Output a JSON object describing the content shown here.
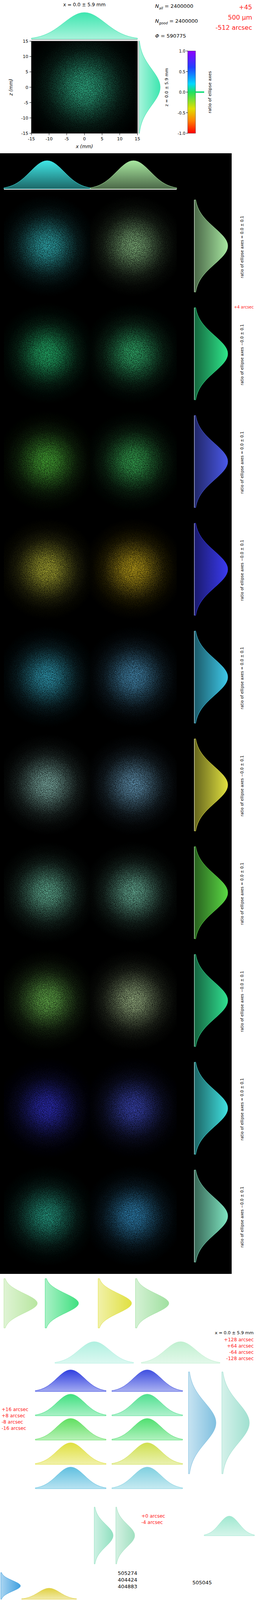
{
  "chart_data": {
    "type": "beam_image",
    "title": "x = 0.0 ± 5.9 mm",
    "side_title": "z = 0.0 ± 5.9 mm",
    "x_label": "x (mm)",
    "y_label": "z (mm)",
    "mean": 0.0,
    "sigma": 5.9,
    "xlim": [
      -15,
      15
    ],
    "ylim": [
      -15,
      15
    ],
    "xticks": [
      -15,
      -10,
      -5,
      0,
      5,
      10,
      15
    ],
    "yticks": [
      -15,
      -10,
      -5,
      0,
      5,
      10,
      15
    ],
    "color": "#3ee6b0",
    "stats": [
      {
        "label": "N",
        "sub": "all",
        "text": "= 2400000"
      },
      {
        "label": "N",
        "sub": "good",
        "text": "= 2400000"
      },
      {
        "label": "Φ",
        "text": "= 590775"
      }
    ],
    "colorbar": {
      "label": "ratio of ellipse axes",
      "range": [
        -1,
        1
      ],
      "ticks": [
        {
          "value": 1,
          "label": "1.0"
        },
        {
          "value": 0.5,
          "label": "0.5"
        },
        {
          "value": 0,
          "label": "0.0"
        },
        {
          "value": -0.5,
          "label": "-0.5"
        },
        {
          "value": -1,
          "label": "-1.0"
        }
      ]
    },
    "annotation": [
      "+45",
      "500 µm",
      "-512 arcsec"
    ]
  },
  "grid_panels": {
    "top_profile_colors": [
      "#3fe6e6",
      "#a8e8a0"
    ],
    "offset_label": "+4 arcsec",
    "rows": [
      {
        "colors": [
          "#3fe0e6",
          "#a6e6a0"
        ],
        "profile_color": "#a6e6a0",
        "side_label": "ratio of ellipse axes = 0.0 ± 0.1"
      },
      {
        "colors": [
          "#2ee68a",
          "#3fe08a"
        ],
        "profile_color": "#2ee68a",
        "side_label": "ratio of ellipse axes −0.0 ± 0.1"
      },
      {
        "colors": [
          "#5ad844",
          "#46d86a"
        ],
        "profile_color": "#4a58e8",
        "side_label": "ratio of ellipse axes = 0.0 ± 0.1"
      },
      {
        "colors": [
          "#d8d840",
          "#f0cc20"
        ],
        "profile_color": "#3a3af0",
        "side_label": "ratio of ellipse axes −0.0 ± 0.1"
      },
      {
        "colors": [
          "#3ec8e8",
          "#5ab4e8"
        ],
        "profile_color": "#3ec8e8",
        "side_label": "ratio of ellipse axes = 0.0 ± 0.1"
      },
      {
        "colors": [
          "#a4e4d8",
          "#7ec0e8"
        ],
        "profile_color": "#e0e040",
        "side_label": "ratio of ellipse axes −0.0 ± 0.1"
      },
      {
        "colors": [
          "#7ee4c0",
          "#86e4c4"
        ],
        "profile_color": "#5ad844",
        "side_label": "ratio of ellipse axes = 0.0 ± 0.1"
      },
      {
        "colors": [
          "#80e060",
          "#c4e4a8"
        ],
        "profile_color": "#30e090",
        "side_label": "ratio of ellipse axes −0.0 ± 0.1"
      },
      {
        "colors": [
          "#3a3af0",
          "#4a58e8"
        ],
        "profile_color": "#40e0e0",
        "side_label": "ratio of ellipse axes = 0.0 ± 0.1"
      },
      {
        "colors": [
          "#30c8a8",
          "#3ca8e8"
        ],
        "profile_color": "#7ee4c0",
        "side_label": "ratio of ellipse axes −0.0 ± 0.1"
      }
    ]
  },
  "bottom": {
    "vertical_profiles": [
      "#b8e6a0",
      "#40e080",
      "#e0e040",
      "#a0e0a0"
    ],
    "faint_profiles": [
      "#b0f0e0",
      "#c0f0d0"
    ],
    "axis_label": "x = 0.0 ± 5.9 mm",
    "right_offsets": [
      "+128 arcsec",
      "+64 arcsec",
      "-64 arcsec",
      "-128 arcsec"
    ],
    "left_offsets": [
      "+16 arcsec",
      "+8 arcsec",
      "-8 arcsec",
      "-16 arcsec"
    ],
    "profile_rows": [
      [
        "#3040e0",
        "#4050e0"
      ],
      [
        "#40e080",
        "#50e090"
      ],
      [
        "#60e060",
        "#50e070"
      ],
      [
        "#e0e040",
        "#d0e050"
      ],
      [
        "#60c0e0",
        "#80d0e0"
      ]
    ],
    "side_profiles": [
      "#80c0e0",
      "#a0e0d0"
    ],
    "small_offsets": [
      "+0 arcsec",
      "-4 arcsec"
    ],
    "small_profiles": [
      "#90e0c0",
      "#a0e0c0"
    ],
    "wide_profile": "#a0e8d0",
    "corner_profiles": [
      "#40a0e0",
      "#e0d040"
    ],
    "counts": [
      505274,
      404424,
      404883
    ],
    "count_extra": 505045
  }
}
